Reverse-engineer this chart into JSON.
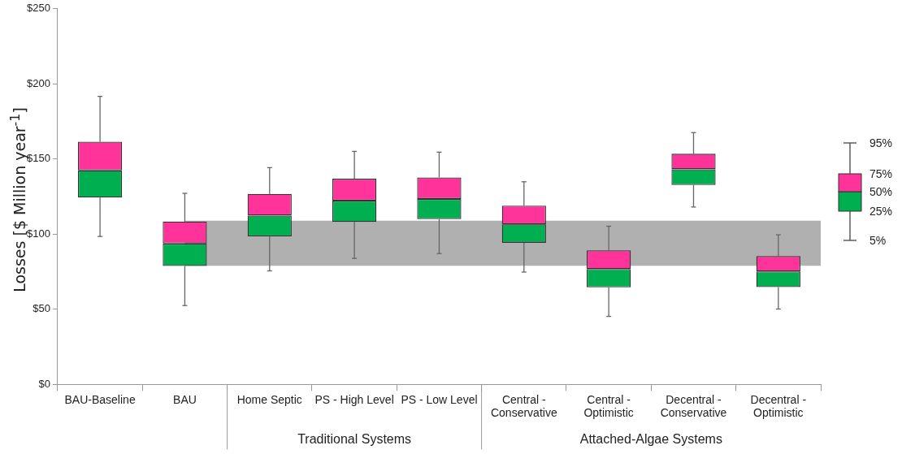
{
  "chart_data": {
    "type": "box",
    "ylabel": "Losses [$ Million year$^{-1}$]",
    "categories": [
      "BAU-Baseline",
      "BAU",
      "Home Septic",
      "PS - High Level",
      "PS - Low Level",
      "Central - Conservative",
      "Central - Optimistic",
      "Decentral - Conservative",
      "Decentral - Optimistic"
    ],
    "color": "#ff3399",
    "series": [
      {
        "color": "#00b050",
        "boxes": [
          {
            "low": 98.5,
            "q1": 124.4,
            "median": 142.5,
            "q3": 161.6,
            "high": 191.7
          },
          {
            "low": 52.5,
            "q1": 78.8,
            "median": 93.8,
            "q3": 108.4,
            "high": 127.2
          },
          {
            "low": 75.6,
            "q1": 98.6,
            "median": 112.4,
            "q3": 126.8,
            "high": 144.3
          },
          {
            "low": 83.9,
            "q1": 108.2,
            "median": 122.3,
            "q3": 136.9,
            "high": 155.1
          },
          {
            "low": 87.1,
            "q1": 110,
            "median": 123.5,
            "q3": 137.8,
            "high": 154.6
          },
          {
            "low": 74.8,
            "q1": 94.3,
            "median": 106.6,
            "q3": 119,
            "high": 134.9
          },
          {
            "low": 45.3,
            "q1": 64.6,
            "median": 76.8,
            "q3": 89.3,
            "high": 105.3
          },
          {
            "low": 118.1,
            "q1": 132.7,
            "median": 143.2,
            "q3": 153.5,
            "high": 167.6
          },
          {
            "low": 50.2,
            "q1": 64.8,
            "median": 75.2,
            "q3": 85.5,
            "high": 99.6
          }
        ]
      }
    ],
    "ylim": [
      0,
      250
    ],
    "yticks": [
      {
        "value": 0,
        "label": "$0"
      },
      {
        "value": 50,
        "label": "$50"
      },
      {
        "value": 100,
        "label": "$100"
      },
      {
        "value": 150,
        "label": "$150"
      },
      {
        "value": 200,
        "label": "$200"
      },
      {
        "value": 250,
        "label": "$250"
      }
    ],
    "bands": [
      {
        "axis": "y",
        "from": 79,
        "to": 109,
        "color": "#b0b0b0"
      }
    ],
    "grid": false,
    "annotations": [
      "Traditional Systems",
      "Attached-Algae Systems",
      "95%",
      "75%",
      "50%",
      "25%",
      "5%"
    ]
  }
}
